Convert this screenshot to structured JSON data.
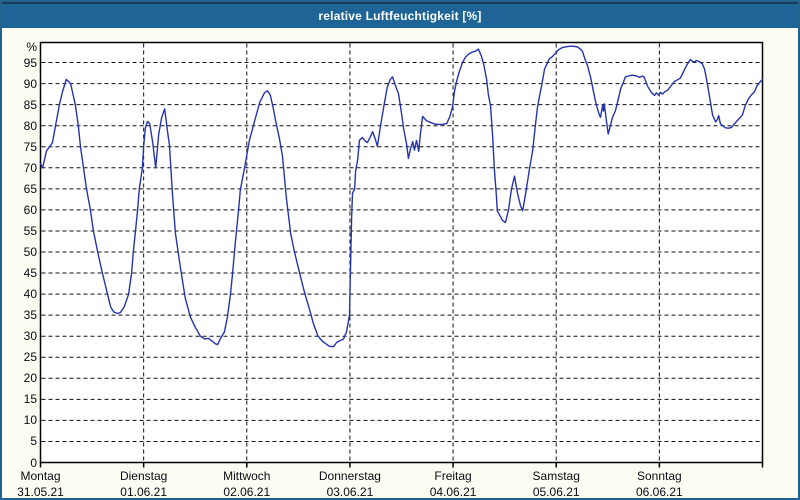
{
  "window": {
    "title": "relative Luftfeuchtigkeit [%]"
  },
  "colors": {
    "titlebar": "#1e6496",
    "titlebar_top_edge": "#143c5c",
    "window_border": "#24618f",
    "window_background": "#fbfcf2",
    "plot_background": "#ffffff",
    "grid": "#111111",
    "axis": "#000000",
    "line": "#2534ad",
    "text": "#0b0b14",
    "title_text": "#ffffff"
  },
  "chart_data": {
    "type": "line",
    "title": "relative Luftfeuchtigkeit [%]",
    "ylabel": "%",
    "ylim": [
      0,
      100
    ],
    "ytick_step": 5,
    "yticks": [
      0,
      5,
      10,
      15,
      20,
      25,
      30,
      35,
      40,
      45,
      50,
      55,
      60,
      65,
      70,
      75,
      80,
      85,
      90,
      95
    ],
    "grid": "dashed",
    "legend": "none",
    "x_range_hours": [
      0,
      168
    ],
    "x_day_ticks_hours": [
      0,
      24,
      48,
      72,
      96,
      120,
      144,
      168
    ],
    "days": [
      {
        "name": "Montag",
        "date": "31.05.21"
      },
      {
        "name": "Dienstag",
        "date": "01.06.21"
      },
      {
        "name": "Mittwoch",
        "date": "02.06.21"
      },
      {
        "name": "Donnerstag",
        "date": "03.06.21"
      },
      {
        "name": "Freitag",
        "date": "04.06.21"
      },
      {
        "name": "Samstag",
        "date": "05.06.21"
      },
      {
        "name": "Sonntag",
        "date": "06.06.21"
      }
    ],
    "series": [
      {
        "name": "relative Luftfeuchtigkeit",
        "unit": "%",
        "color": "#2534ad",
        "points": [
          [
            0.0,
            71
          ],
          [
            0.5,
            70
          ],
          [
            1.4,
            74
          ],
          [
            2.8,
            76
          ],
          [
            3.5,
            80
          ],
          [
            4.4,
            85
          ],
          [
            5.1,
            88
          ],
          [
            6.0,
            91
          ],
          [
            7.0,
            90
          ],
          [
            8.1,
            85
          ],
          [
            8.8,
            80
          ],
          [
            9.3,
            75
          ],
          [
            10.0,
            70
          ],
          [
            10.7,
            65
          ],
          [
            11.6,
            60
          ],
          [
            12.3,
            55
          ],
          [
            13.3,
            50
          ],
          [
            14.4,
            45
          ],
          [
            15.6,
            40
          ],
          [
            16.3,
            37
          ],
          [
            17.0,
            35.8
          ],
          [
            17.9,
            35.4
          ],
          [
            18.6,
            35.6
          ],
          [
            19.5,
            37
          ],
          [
            20.5,
            40
          ],
          [
            21.2,
            45
          ],
          [
            21.6,
            50
          ],
          [
            22.1,
            55
          ],
          [
            22.6,
            60
          ],
          [
            23.0,
            65
          ],
          [
            23.7,
            70
          ],
          [
            24.0,
            75
          ],
          [
            24.4,
            79.5
          ],
          [
            24.9,
            81
          ],
          [
            25.4,
            80.5
          ],
          [
            26.1,
            76
          ],
          [
            26.8,
            70
          ],
          [
            27.5,
            78
          ],
          [
            28.2,
            82
          ],
          [
            28.9,
            84
          ],
          [
            29.5,
            79
          ],
          [
            30.0,
            75.5
          ],
          [
            30.7,
            64
          ],
          [
            31.4,
            54.5
          ],
          [
            32.6,
            46
          ],
          [
            33.7,
            39
          ],
          [
            34.9,
            34.5
          ],
          [
            36.1,
            32
          ],
          [
            37.2,
            30
          ],
          [
            38.2,
            29.3
          ],
          [
            39.1,
            29.5
          ],
          [
            40.0,
            28.8
          ],
          [
            40.7,
            28.2
          ],
          [
            41.2,
            28
          ],
          [
            41.9,
            29.5
          ],
          [
            42.8,
            31
          ],
          [
            43.5,
            34.5
          ],
          [
            44.2,
            40
          ],
          [
            44.7,
            45
          ],
          [
            45.4,
            53
          ],
          [
            46.1,
            60
          ],
          [
            46.5,
            64.7
          ],
          [
            47.5,
            70
          ],
          [
            48.6,
            76.5
          ],
          [
            49.8,
            81
          ],
          [
            51.0,
            85.5
          ],
          [
            52.1,
            87.8
          ],
          [
            52.8,
            88.3
          ],
          [
            53.5,
            87.2
          ],
          [
            54.2,
            84
          ],
          [
            54.7,
            81.2
          ],
          [
            55.6,
            77
          ],
          [
            56.3,
            72.7
          ],
          [
            57.2,
            63
          ],
          [
            58.2,
            54.5
          ],
          [
            59.1,
            50
          ],
          [
            60.3,
            45
          ],
          [
            61.4,
            40.5
          ],
          [
            62.6,
            36.4
          ],
          [
            63.5,
            33
          ],
          [
            64.5,
            30.2
          ],
          [
            65.4,
            29
          ],
          [
            66.3,
            28.3
          ],
          [
            67.2,
            27.6
          ],
          [
            68.2,
            27.5
          ],
          [
            68.9,
            28.5
          ],
          [
            69.8,
            29
          ],
          [
            70.5,
            29.3
          ],
          [
            71.2,
            31
          ],
          [
            71.9,
            35
          ],
          [
            72.1,
            45
          ],
          [
            72.4,
            58
          ],
          [
            72.6,
            64
          ],
          [
            73.1,
            65
          ],
          [
            73.3,
            69
          ],
          [
            73.8,
            72
          ],
          [
            74.2,
            76.5
          ],
          [
            74.9,
            77.2
          ],
          [
            75.6,
            76.3
          ],
          [
            76.1,
            76
          ],
          [
            76.8,
            77.5
          ],
          [
            77.3,
            78.6
          ],
          [
            78.0,
            76.5
          ],
          [
            78.4,
            75.1
          ],
          [
            79.1,
            79.8
          ],
          [
            79.8,
            84
          ],
          [
            80.7,
            89.2
          ],
          [
            81.4,
            91
          ],
          [
            81.9,
            91.6
          ],
          [
            82.6,
            89.5
          ],
          [
            83.3,
            87.6
          ],
          [
            84.0,
            83
          ],
          [
            84.5,
            79.3
          ],
          [
            85.2,
            75.5
          ],
          [
            85.6,
            72.2
          ],
          [
            86.1,
            74.5
          ],
          [
            86.6,
            76.2
          ],
          [
            87.0,
            74.2
          ],
          [
            87.5,
            76.5
          ],
          [
            88.0,
            73.9
          ],
          [
            88.4,
            78
          ],
          [
            88.9,
            82.2
          ],
          [
            89.8,
            81.2
          ],
          [
            90.7,
            80.8
          ],
          [
            91.7,
            80.4
          ],
          [
            92.6,
            80.3
          ],
          [
            93.5,
            80.3
          ],
          [
            94.5,
            80.5
          ],
          [
            95.2,
            82
          ],
          [
            95.9,
            84.5
          ],
          [
            96.3,
            88
          ],
          [
            96.8,
            90.5
          ],
          [
            97.5,
            93
          ],
          [
            98.2,
            95
          ],
          [
            98.9,
            96.3
          ],
          [
            99.6,
            97
          ],
          [
            100.5,
            97.5
          ],
          [
            101.2,
            97.7
          ],
          [
            101.9,
            98.2
          ],
          [
            102.6,
            96.5
          ],
          [
            103.1,
            94.7
          ],
          [
            103.8,
            91
          ],
          [
            104.2,
            87.5
          ],
          [
            104.7,
            84.8
          ],
          [
            105.2,
            77.7
          ],
          [
            105.6,
            69.9
          ],
          [
            106.1,
            63
          ],
          [
            106.3,
            59.7
          ],
          [
            107.0,
            58.5
          ],
          [
            107.5,
            57.5
          ],
          [
            108.2,
            57
          ],
          [
            108.9,
            60
          ],
          [
            109.6,
            65
          ],
          [
            110.3,
            68
          ],
          [
            111.0,
            64
          ],
          [
            111.7,
            61
          ],
          [
            112.2,
            59.8
          ],
          [
            112.9,
            64
          ],
          [
            113.8,
            69.9
          ],
          [
            114.5,
            74
          ],
          [
            114.9,
            77.7
          ],
          [
            115.6,
            84.1
          ],
          [
            116.1,
            87
          ],
          [
            116.6,
            89.5
          ],
          [
            117.3,
            93.5
          ],
          [
            118.0,
            95
          ],
          [
            118.4,
            95.9
          ],
          [
            119.1,
            96.4
          ],
          [
            119.8,
            97.2
          ],
          [
            120.5,
            98
          ],
          [
            121.5,
            98.6
          ],
          [
            122.6,
            98.8
          ],
          [
            123.8,
            98.9
          ],
          [
            125.0,
            98.7
          ],
          [
            125.6,
            98.2
          ],
          [
            126.1,
            97.7
          ],
          [
            126.8,
            95.5
          ],
          [
            127.3,
            94.2
          ],
          [
            128.0,
            91.5
          ],
          [
            128.4,
            89.5
          ],
          [
            129.1,
            86
          ],
          [
            129.6,
            84
          ],
          [
            130.1,
            82.4
          ],
          [
            130.3,
            82
          ],
          [
            130.8,
            84.8
          ],
          [
            131.0,
            83.5
          ],
          [
            131.2,
            85.2
          ],
          [
            131.7,
            81
          ],
          [
            132.1,
            78
          ],
          [
            132.6,
            80
          ],
          [
            133.1,
            82
          ],
          [
            133.8,
            83.6
          ],
          [
            134.5,
            86.5
          ],
          [
            135.0,
            88.8
          ],
          [
            135.7,
            90.5
          ],
          [
            136.1,
            91.6
          ],
          [
            136.8,
            91.8
          ],
          [
            137.7,
            92
          ],
          [
            138.7,
            91.8
          ],
          [
            139.4,
            91.5
          ],
          [
            140.1,
            91.8
          ],
          [
            140.5,
            91.5
          ],
          [
            141.2,
            89.5
          ],
          [
            141.9,
            88.3
          ],
          [
            142.4,
            87.6
          ],
          [
            142.9,
            87.2
          ],
          [
            143.3,
            87.8
          ],
          [
            143.8,
            87.3
          ],
          [
            144.3,
            87.9
          ],
          [
            144.7,
            87.5
          ],
          [
            145.2,
            88
          ],
          [
            145.9,
            88.4
          ],
          [
            146.6,
            89.3
          ],
          [
            147.5,
            90.5
          ],
          [
            148.2,
            90.9
          ],
          [
            148.9,
            91.3
          ],
          [
            149.6,
            92.8
          ],
          [
            150.3,
            94.2
          ],
          [
            150.8,
            95.1
          ],
          [
            151.2,
            95.7
          ],
          [
            151.7,
            95.3
          ],
          [
            152.2,
            95.1
          ],
          [
            152.6,
            95.5
          ],
          [
            153.3,
            95.2
          ],
          [
            154.0,
            94.7
          ],
          [
            154.5,
            93.5
          ],
          [
            154.9,
            91.5
          ],
          [
            155.4,
            88.5
          ],
          [
            155.9,
            85.5
          ],
          [
            156.4,
            82.5
          ],
          [
            157.1,
            80.9
          ],
          [
            157.5,
            81.5
          ],
          [
            157.8,
            82.4
          ],
          [
            158.2,
            80.5
          ],
          [
            158.7,
            80
          ],
          [
            159.4,
            79.5
          ],
          [
            160.1,
            79.4
          ],
          [
            160.8,
            79.6
          ],
          [
            161.5,
            80.5
          ],
          [
            162.4,
            81.5
          ],
          [
            163.3,
            82.5
          ],
          [
            164.0,
            84.8
          ],
          [
            164.7,
            86.3
          ],
          [
            165.4,
            87.3
          ],
          [
            166.1,
            88
          ],
          [
            166.8,
            89.6
          ],
          [
            167.5,
            90.5
          ],
          [
            168.0,
            91
          ]
        ]
      }
    ]
  }
}
